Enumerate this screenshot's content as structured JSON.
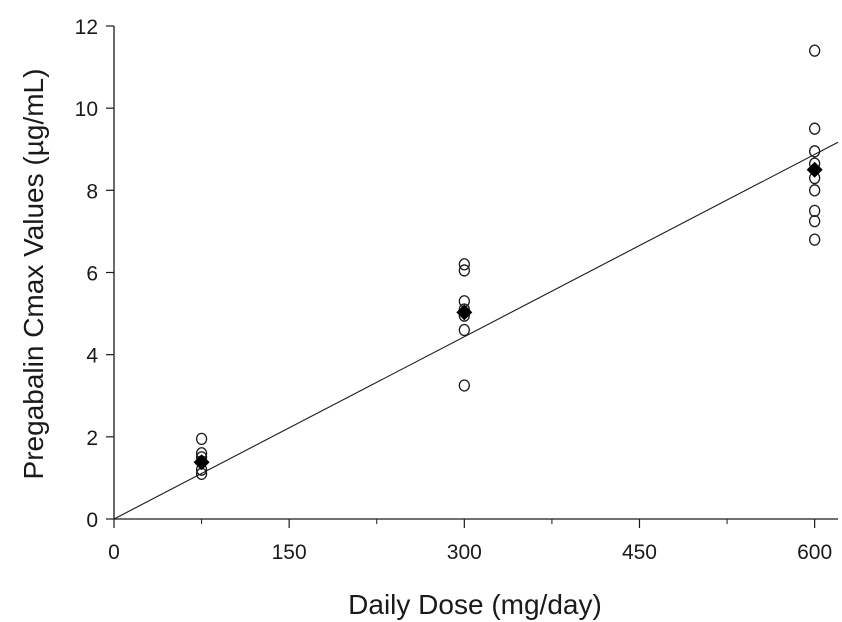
{
  "chart_data": {
    "type": "scatter",
    "title": "",
    "xlabel": "Daily Dose (mg/day)",
    "ylabel": "Pregabalin Cmax Values (µg/mL)",
    "xlim": [
      0,
      620
    ],
    "ylim": [
      0,
      12
    ],
    "x_ticks": [
      0,
      150,
      300,
      450,
      600
    ],
    "x_tick_labels": [
      "0",
      "150",
      "300",
      "450",
      "600"
    ],
    "x_minor_ticks": [
      75,
      225,
      375,
      525
    ],
    "y_ticks": [
      0,
      2,
      4,
      6,
      8,
      10,
      12
    ],
    "y_tick_labels": [
      "0",
      "2",
      "4",
      "6",
      "8",
      "10",
      "12"
    ],
    "grid": false,
    "series": [
      {
        "marker": "open-circle",
        "points": [
          [
            75,
            1.95
          ],
          [
            75,
            1.6
          ],
          [
            75,
            1.5
          ],
          [
            75,
            1.4
          ],
          [
            75,
            1.2
          ],
          [
            75,
            1.1
          ],
          [
            300,
            6.2
          ],
          [
            300,
            6.05
          ],
          [
            300,
            5.3
          ],
          [
            300,
            5.1
          ],
          [
            300,
            4.95
          ],
          [
            300,
            4.6
          ],
          [
            300,
            3.25
          ],
          [
            600,
            11.4
          ],
          [
            600,
            9.5
          ],
          [
            600,
            8.95
          ],
          [
            600,
            8.65
          ],
          [
            600,
            8.3
          ],
          [
            600,
            8.0
          ],
          [
            600,
            7.5
          ],
          [
            600,
            7.25
          ],
          [
            600,
            6.8
          ]
        ]
      },
      {
        "marker": "filled-diamond",
        "points": [
          [
            75,
            1.38
          ],
          [
            300,
            5.03
          ],
          [
            600,
            8.5
          ]
        ]
      }
    ],
    "fit_line": {
      "x": [
        0,
        620
      ],
      "y": [
        0,
        9.17
      ]
    }
  }
}
